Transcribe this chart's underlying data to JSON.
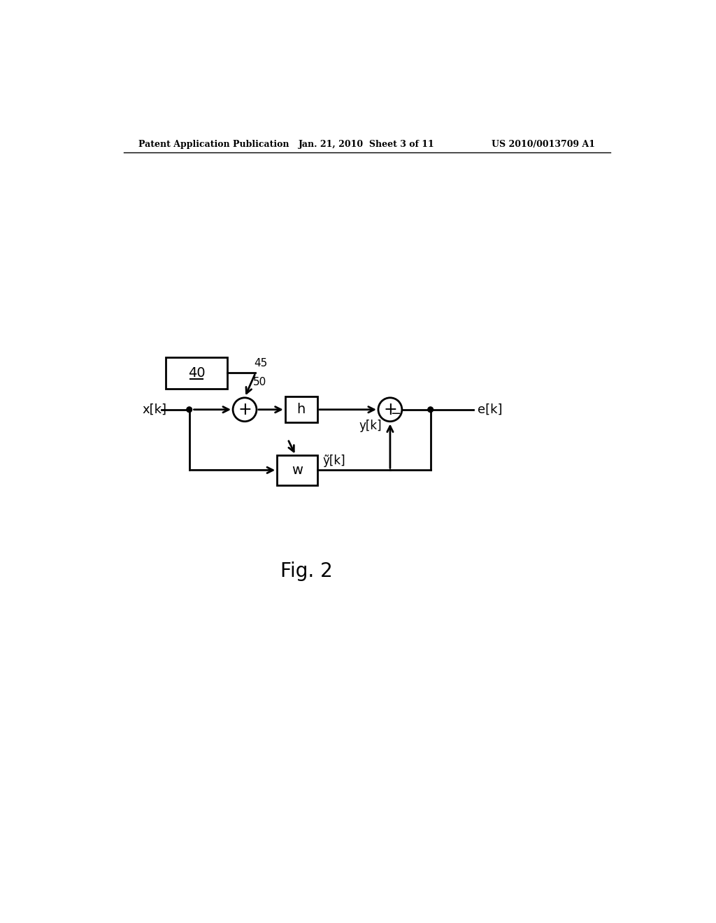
{
  "bg_color": "#ffffff",
  "header_left": "Patent Application Publication",
  "header_center": "Jan. 21, 2010  Sheet 3 of 11",
  "header_right": "US 2010/0013709 A1",
  "fig_caption": "Fig. 2",
  "label_xk": "x[k]",
  "label_ek": "e[k]",
  "label_yk": "y[k]",
  "label_ytilde": "ỹ[k]",
  "label_h": "h",
  "label_w": "w",
  "label_40": "40",
  "label_45": "45",
  "label_50": "50",
  "line_color": "#000000",
  "line_width": 2.0
}
